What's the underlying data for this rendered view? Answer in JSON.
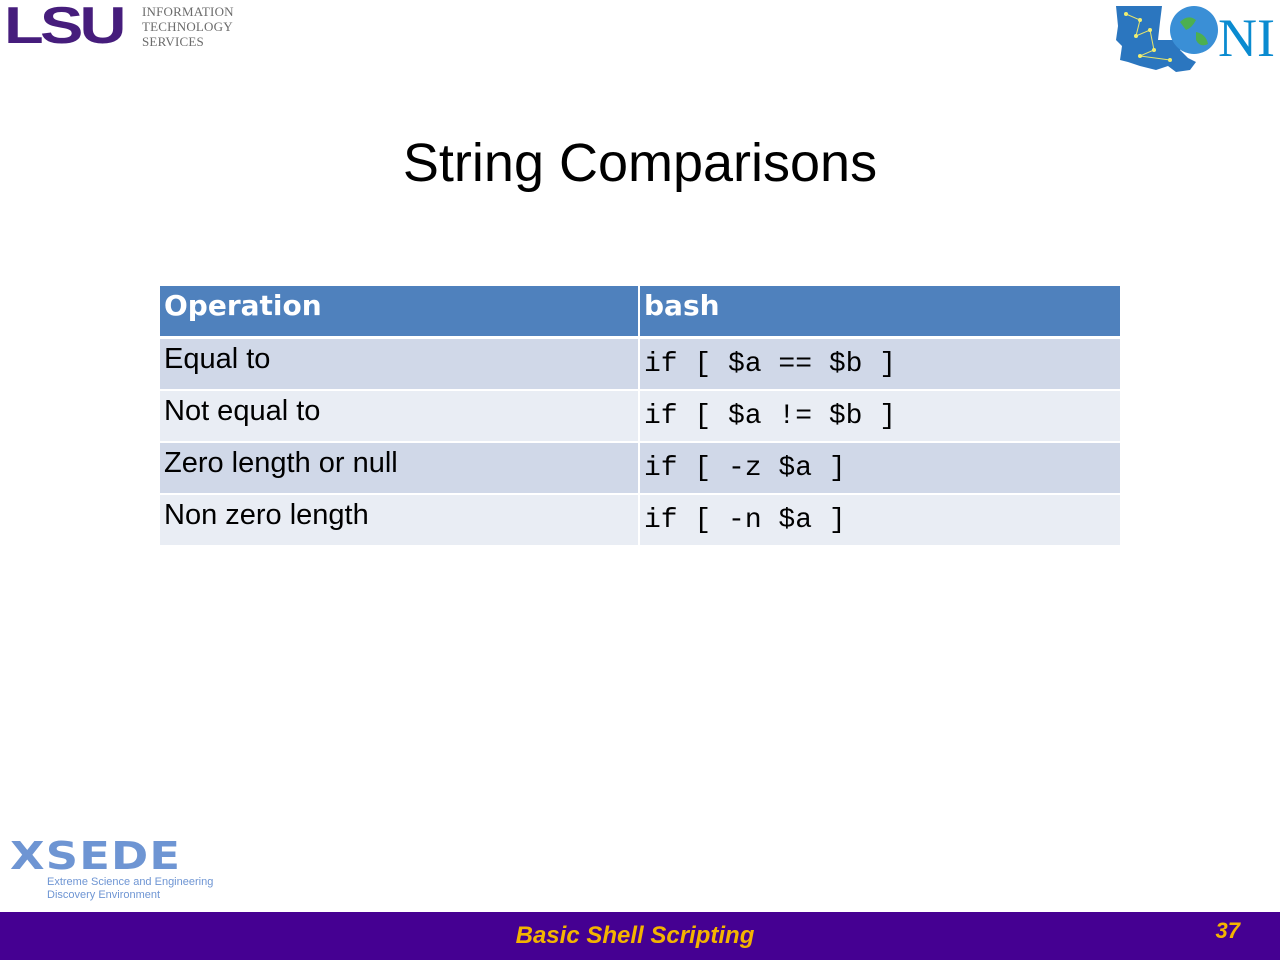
{
  "logos": {
    "lsu_mark": "LSU",
    "lsu_unit_lines": [
      "INFORMATION",
      "TECHNOLOGY",
      "SERVICES"
    ],
    "loni_text": "NI",
    "xsede_mark": "XSEDE",
    "xsede_sub_lines": [
      "Extreme Science and Engineering",
      "Discovery Environment"
    ]
  },
  "slide": {
    "title": "String Comparisons"
  },
  "table": {
    "headers": [
      "Operation",
      "bash"
    ],
    "rows": [
      {
        "operation": "Equal to",
        "bash": "if [ $a == $b ]"
      },
      {
        "operation": "Not equal to",
        "bash": "if [ $a != $b ]"
      },
      {
        "operation": "Zero length or null",
        "bash": "if [ -z $a ]"
      },
      {
        "operation": "Non zero length",
        "bash": "if [ -n $a ]"
      }
    ]
  },
  "footer": {
    "title": "Basic Shell Scripting",
    "page_number": "37"
  },
  "colors": {
    "lsu_purple": "#461d7c",
    "header_blue": "#4f81bd",
    "row_odd": "#d0d8e8",
    "row_even": "#e9edf4",
    "footer_purple": "#450092",
    "footer_gold": "#f4b400"
  }
}
